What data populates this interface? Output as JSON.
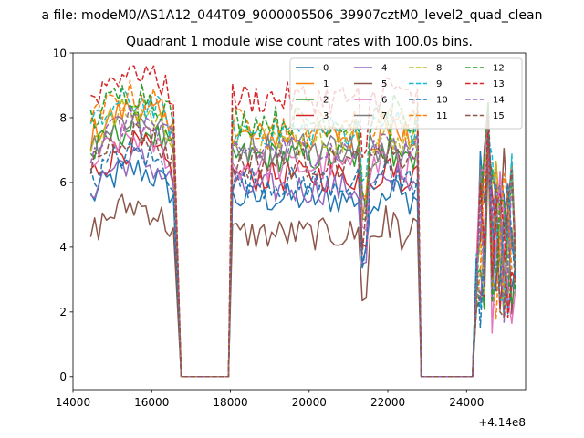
{
  "figure": {
    "suptitle": "a file: modeM0/AS1A12_044T09_9000005506_39907cztM0_level2_quad_clean",
    "title": "Quadrant 1 module wise count rates with 100.0s bins.",
    "offset_text": "+4.14e8"
  },
  "chart_data": {
    "type": "line",
    "title": "Quadrant 1 module wise count rates with 100.0s bins.",
    "xlabel": "",
    "ylabel": "",
    "x_offset": 414000000,
    "xlim": [
      14000,
      25500
    ],
    "ylim": [
      -0.4,
      10
    ],
    "xticks": [
      14000,
      16000,
      18000,
      20000,
      22000,
      24000
    ],
    "yticks": [
      0,
      2,
      4,
      6,
      8,
      10
    ],
    "legend_position": "top-right",
    "segments": [
      {
        "start": 14450,
        "end": 16550,
        "n": 22,
        "drop_to": 16750
      },
      {
        "start": 18050,
        "end": 22750,
        "n": 48,
        "drop_from": 17950,
        "drop_to": 22850
      },
      {
        "start": 24250,
        "end": 25250,
        "n": 11,
        "drop_from": 24150
      }
    ],
    "zero_gaps": [
      [
        16750,
        17950
      ],
      [
        22850,
        24150
      ]
    ],
    "series": [
      {
        "name": "0",
        "color": "#1f77b4",
        "dash": false,
        "base": 5.5
      },
      {
        "name": "1",
        "color": "#ff7f0e",
        "dash": false,
        "base": 7.4
      },
      {
        "name": "2",
        "color": "#2ca02c",
        "dash": false,
        "base": 6.8
      },
      {
        "name": "3",
        "color": "#d62728",
        "dash": false,
        "base": 6.2
      },
      {
        "name": "4",
        "color": "#9467bd",
        "dash": false,
        "base": 5.8
      },
      {
        "name": "5",
        "color": "#8c564b",
        "dash": false,
        "base": 4.4
      },
      {
        "name": "6",
        "color": "#e377c2",
        "dash": false,
        "base": 6.5
      },
      {
        "name": "7",
        "color": "#7f7f7f",
        "dash": false,
        "base": 7.1
      },
      {
        "name": "8",
        "color": "#bcbd22",
        "dash": true,
        "base": 7.3
      },
      {
        "name": "9",
        "color": "#17becf",
        "dash": true,
        "base": 7.6
      },
      {
        "name": "10",
        "color": "#1f77b4",
        "dash": true,
        "base": 6.0
      },
      {
        "name": "11",
        "color": "#ff7f0e",
        "dash": true,
        "base": 7.8
      },
      {
        "name": "12",
        "color": "#2ca02c",
        "dash": true,
        "base": 7.9
      },
      {
        "name": "13",
        "color": "#d62728",
        "dash": true,
        "base": 8.6
      },
      {
        "name": "14",
        "color": "#9467bd",
        "dash": true,
        "base": 7.0
      },
      {
        "name": "15",
        "color": "#8c564b",
        "dash": true,
        "base": 6.6
      }
    ]
  }
}
